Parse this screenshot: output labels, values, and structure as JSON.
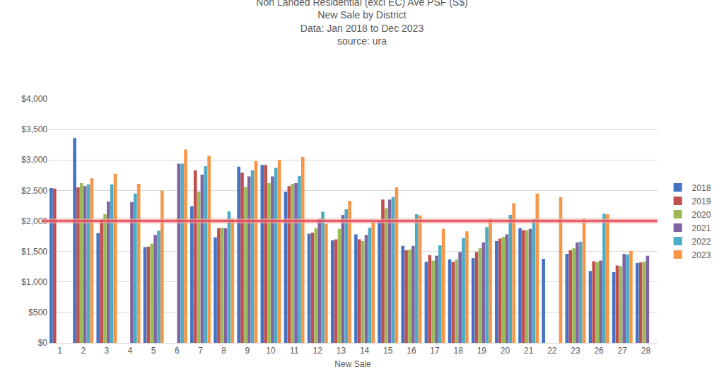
{
  "chart_data": {
    "type": "bar",
    "title": "Non Landed Residential (excl EC) Ave PSF (S$)",
    "subtitle": [
      "New Sale by District",
      "Data: Jan 2018 to Dec 2023",
      "source: ura"
    ],
    "x_label": "New Sale",
    "categories": [
      "1",
      "2",
      "3",
      "4",
      "5",
      "6",
      "7",
      "8",
      "9",
      "10",
      "11",
      "12",
      "13",
      "14",
      "15",
      "16",
      "17",
      "18",
      "19",
      "20",
      "21",
      "22",
      "23",
      "26",
      "27",
      "28"
    ],
    "series": [
      {
        "name": "2018",
        "color": "#4472c4",
        "values": [
          2540,
          3360,
          1800,
          null,
          1570,
          null,
          2240,
          1730,
          2890,
          2920,
          2480,
          1790,
          1680,
          1780,
          1990,
          1590,
          1330,
          1370,
          1390,
          1670,
          1880,
          1380,
          1460,
          1180,
          1160,
          1310
        ]
      },
      {
        "name": "2019",
        "color": "#c0504d",
        "values": [
          2530,
          2550,
          2020,
          null,
          1580,
          null,
          2830,
          1880,
          2790,
          2920,
          2570,
          1810,
          1700,
          1700,
          2350,
          1520,
          1440,
          1330,
          1490,
          1710,
          1850,
          null,
          1520,
          1340,
          1270,
          1320
        ]
      },
      {
        "name": "2020",
        "color": "#9bbb59",
        "values": [
          null,
          2620,
          2110,
          null,
          1630,
          null,
          2480,
          1890,
          2560,
          2620,
          2610,
          1880,
          1870,
          1670,
          2210,
          1530,
          1350,
          1370,
          1550,
          1740,
          1850,
          null,
          1550,
          1330,
          1260,
          1330
        ]
      },
      {
        "name": "2021",
        "color": "#8064a2",
        "values": [
          null,
          2570,
          2320,
          2310,
          1770,
          2940,
          2760,
          1880,
          2730,
          2730,
          2620,
          2030,
          2100,
          1770,
          2350,
          1590,
          1430,
          1490,
          1650,
          1780,
          1870,
          null,
          1650,
          1350,
          1460,
          1430
        ]
      },
      {
        "name": "2022",
        "color": "#4bacc6",
        "values": [
          null,
          2600,
          2600,
          2450,
          1840,
          2940,
          2900,
          2160,
          2830,
          2870,
          2740,
          2150,
          2190,
          1890,
          2390,
          2110,
          1600,
          1720,
          1900,
          2100,
          2030,
          null,
          1660,
          2120,
          1450,
          null
        ]
      },
      {
        "name": "2023",
        "color": "#f79646",
        "values": [
          null,
          2700,
          2770,
          2610,
          2500,
          3170,
          3070,
          2040,
          2980,
          3000,
          3050,
          1950,
          2330,
          1980,
          2550,
          2090,
          1870,
          1830,
          2040,
          2290,
          2450,
          2390,
          2040,
          2110,
          1510,
          null
        ]
      }
    ],
    "reference_line": 2000,
    "ylim": [
      0,
      4000
    ],
    "yticks": [
      {
        "value": 0,
        "label": "$0"
      },
      {
        "value": 500,
        "label": "$500"
      },
      {
        "value": 1000,
        "label": "$1,000"
      },
      {
        "value": 1500,
        "label": "$1,500"
      },
      {
        "value": 2000,
        "label": "$2,000"
      },
      {
        "value": 2500,
        "label": "$2,500"
      },
      {
        "value": 3000,
        "label": "$3,000"
      },
      {
        "value": 3500,
        "label": "$3,500"
      },
      {
        "value": 4000,
        "label": "$4,000"
      }
    ],
    "grid": true,
    "legend": "right"
  }
}
